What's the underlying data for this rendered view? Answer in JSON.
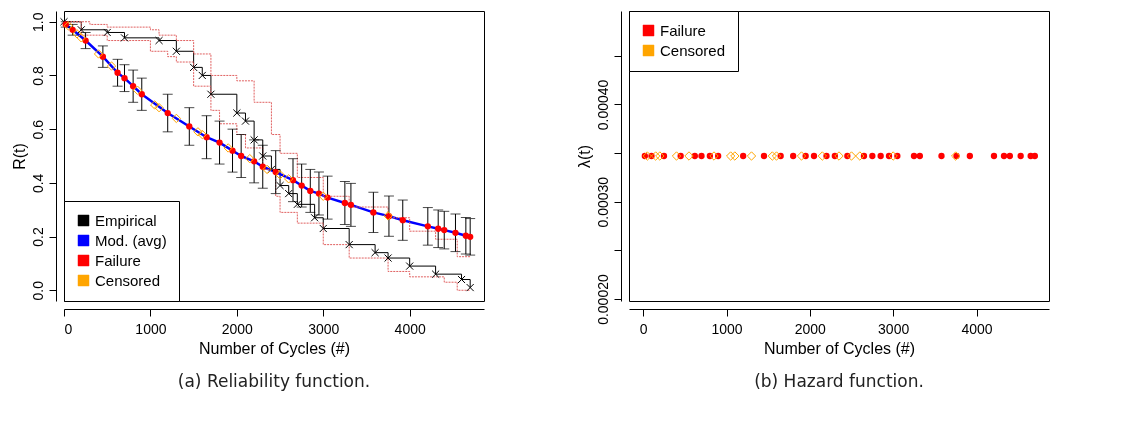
{
  "chart_data": [
    {
      "type": "line",
      "title": "(a) Reliability function.",
      "xlabel": "Number of Cycles (#)",
      "ylabel": "R(t)",
      "xlim": [
        0,
        4860
      ],
      "ylim": [
        -0.04,
        1.04
      ],
      "xticks": [
        0,
        1000,
        2000,
        3000,
        4000
      ],
      "yticks": [
        {
          "value": 0,
          "label": "0.0"
        },
        0.2,
        0.4,
        0.6,
        0.8,
        {
          "value": 1,
          "label": "1.0"
        }
      ],
      "legend": "bottom left",
      "series": [
        {
          "name": "Empirical",
          "type": "step",
          "color": "#000000",
          "marker": "cross",
          "x": [
            0,
            200,
            500,
            700,
            1100,
            1300,
            1500,
            1600,
            1700,
            2000,
            2100,
            2200,
            2300,
            2400,
            2500,
            2600,
            2700,
            2900,
            3000,
            3300,
            3600,
            3750,
            4000,
            4300,
            4600,
            4700
          ],
          "values": [
            1.0,
            0.97,
            0.96,
            0.94,
            0.93,
            0.89,
            0.83,
            0.8,
            0.73,
            0.66,
            0.63,
            0.56,
            0.5,
            0.45,
            0.39,
            0.36,
            0.32,
            0.27,
            0.23,
            0.17,
            0.14,
            0.12,
            0.09,
            0.06,
            0.04,
            0.01
          ]
        },
        {
          "name": "Mod. (avg)",
          "type": "line",
          "color": "#0000ff",
          "x": [
            0,
            20,
            100,
            250,
            450,
            620,
            700,
            800,
            900,
            1200,
            1450,
            1650,
            1800,
            1950,
            2050,
            2200,
            2300,
            2450,
            2650,
            2750,
            2850,
            2950,
            3050,
            3250,
            3320,
            3580,
            3760,
            3920,
            4210,
            4330,
            4400,
            4530,
            4650,
            4700
          ],
          "values": [
            1.0,
            0.99,
            0.97,
            0.93,
            0.87,
            0.81,
            0.79,
            0.76,
            0.73,
            0.66,
            0.61,
            0.57,
            0.55,
            0.52,
            0.5,
            0.48,
            0.46,
            0.44,
            0.41,
            0.39,
            0.37,
            0.36,
            0.345,
            0.325,
            0.318,
            0.29,
            0.276,
            0.261,
            0.238,
            0.229,
            0.224,
            0.214,
            0.203,
            0.199
          ],
          "errors": [
            null,
            0.01,
            0.02,
            0.03,
            0.04,
            0.05,
            0.05,
            0.06,
            0.06,
            0.07,
            0.07,
            0.08,
            0.08,
            0.08,
            0.08,
            0.08,
            0.08,
            0.08,
            0.08,
            0.08,
            0.08,
            0.08,
            0.08,
            0.08,
            0.08,
            0.075,
            0.075,
            0.075,
            0.07,
            0.07,
            0.07,
            0.07,
            0.068,
            0.068
          ]
        },
        {
          "name": "Failure",
          "type": "scatter",
          "color": "#ff0000",
          "marker": "circle",
          "x": [
            20,
            100,
            250,
            450,
            620,
            700,
            800,
            900,
            1200,
            1450,
            1650,
            1800,
            1950,
            2050,
            2200,
            2300,
            2450,
            2650,
            2750,
            2850,
            2950,
            3050,
            3250,
            3320,
            3580,
            3760,
            3920,
            4210,
            4330,
            4400,
            4530,
            4650,
            4700
          ],
          "values": [
            0.99,
            0.97,
            0.93,
            0.87,
            0.81,
            0.79,
            0.76,
            0.73,
            0.66,
            0.61,
            0.57,
            0.55,
            0.52,
            0.5,
            0.48,
            0.46,
            0.44,
            0.41,
            0.39,
            0.37,
            0.36,
            0.345,
            0.325,
            0.318,
            0.29,
            0.276,
            0.261,
            0.238,
            0.229,
            0.224,
            0.214,
            0.203,
            0.199
          ]
        },
        {
          "name": "Censored",
          "type": "scatter",
          "color": "#ffa500",
          "marker": "diamond",
          "x": [
            50,
            150,
            200,
            400,
            550,
            850,
            1050,
            1100,
            1300,
            1550,
            1600,
            1900,
            2150,
            2350,
            2500,
            2600,
            3000,
            3750
          ],
          "values": [
            0.985,
            0.955,
            0.94,
            0.88,
            0.835,
            0.745,
            0.69,
            0.68,
            0.64,
            0.59,
            0.58,
            0.53,
            0.49,
            0.45,
            0.43,
            0.415,
            0.35,
            0.277
          ]
        },
        {
          "type": "step",
          "color": "#e06060",
          "line_style": "dashed",
          "x": [
            0,
            300,
            500,
            1000,
            1100,
            1300,
            1500,
            1700,
            2000,
            2200,
            2400,
            2500,
            2700,
            3000,
            3300,
            3750,
            4000,
            4300,
            4550,
            4700
          ],
          "values": [
            1.0,
            0.99,
            0.98,
            0.97,
            0.95,
            0.93,
            0.88,
            0.8,
            0.78,
            0.7,
            0.58,
            0.51,
            0.42,
            0.35,
            0.31,
            0.27,
            0.22,
            0.19,
            0.125,
            0.125
          ]
        },
        {
          "type": "step",
          "color": "#e06060",
          "line_style": "dashed",
          "x": [
            0,
            200,
            500,
            1000,
            1200,
            1300,
            1500,
            1700,
            1800,
            2000,
            2100,
            2300,
            2450,
            2500,
            2700,
            3000,
            3300,
            3750,
            4000,
            4400,
            4550,
            4700
          ],
          "values": [
            1.0,
            0.95,
            0.93,
            0.89,
            0.87,
            0.85,
            0.76,
            0.67,
            0.62,
            0.58,
            0.53,
            0.45,
            0.35,
            0.29,
            0.25,
            0.17,
            0.12,
            0.07,
            0.05,
            0.03,
            0.0,
            0.0
          ]
        }
      ]
    },
    {
      "type": "scatter",
      "title": "(b) Hazard function.",
      "xlabel": "Number of Cycles (#)",
      "ylabel": "λ(t)",
      "xlim": [
        -170,
        4870
      ],
      "ylim": [
        0.000198,
        0.000496
      ],
      "xticks": [
        0,
        1000,
        2000,
        3000,
        4000
      ],
      "yticks": [
        {
          "value": 0.0002,
          "label": "0.00020"
        },
        {
          "value": 0.00025,
          "label": null
        },
        {
          "value": 0.0003,
          "label": "0.00030"
        },
        {
          "value": 0.00035,
          "label": null
        },
        {
          "value": 0.0004,
          "label": "0.00040"
        },
        {
          "value": 0.00045,
          "label": null
        }
      ],
      "legend": "top left",
      "series": [
        {
          "name": "Failure",
          "color": "#ff0000",
          "marker": "circle",
          "x": [
            20,
            100,
            250,
            450,
            620,
            700,
            800,
            900,
            1200,
            1450,
            1650,
            1800,
            1950,
            2050,
            2200,
            2300,
            2450,
            2650,
            2750,
            2850,
            2950,
            3050,
            3250,
            3320,
            3580,
            3760,
            3920,
            4210,
            4330,
            4400,
            4530,
            4650,
            4700
          ],
          "values": [
            0.000347,
            0.000347,
            0.000347,
            0.000347,
            0.000347,
            0.000347,
            0.000347,
            0.000347,
            0.000347,
            0.000347,
            0.000347,
            0.000347,
            0.000347,
            0.000347,
            0.000347,
            0.000347,
            0.000347,
            0.000347,
            0.000347,
            0.000347,
            0.000347,
            0.000347,
            0.000347,
            0.000347,
            0.000347,
            0.000347,
            0.000347,
            0.000347,
            0.000347,
            0.000347,
            0.000347,
            0.000347,
            0.000347
          ]
        },
        {
          "name": "Censored",
          "color": "#ffa500",
          "marker": "diamond",
          "x": [
            50,
            150,
            200,
            400,
            550,
            850,
            1050,
            1100,
            1300,
            1550,
            1600,
            1900,
            2150,
            2350,
            2500,
            2600,
            3000,
            3750
          ],
          "values": [
            0.000347,
            0.000347,
            0.000347,
            0.000347,
            0.000347,
            0.000347,
            0.000347,
            0.000347,
            0.000347,
            0.000347,
            0.000347,
            0.000347,
            0.000347,
            0.000347,
            0.000347,
            0.000347,
            0.000347,
            0.000347
          ]
        }
      ]
    }
  ]
}
